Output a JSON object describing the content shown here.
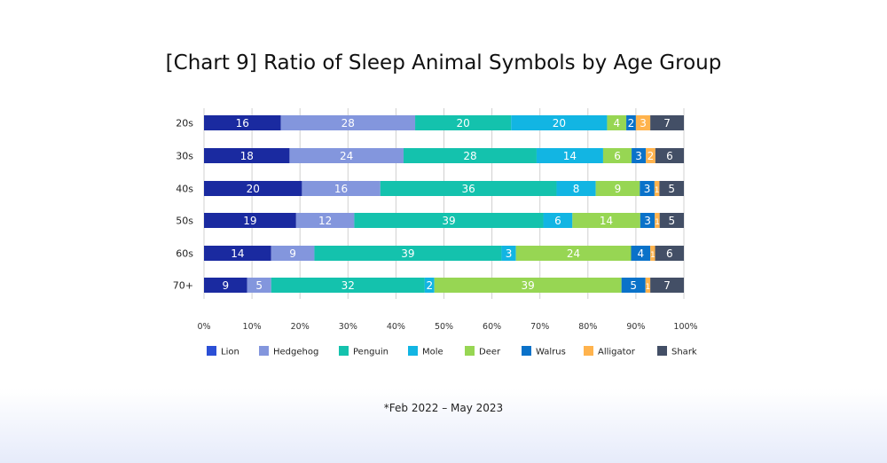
{
  "chart_data": {
    "type": "bar",
    "orientation": "horizontal",
    "stacked": true,
    "percent": true,
    "title": "[Chart 9] Ratio of Sleep Animal Symbols by Age Group",
    "categories": [
      "20s",
      "30s",
      "40s",
      "50s",
      "60s",
      "70+"
    ],
    "xlim": [
      0,
      100
    ],
    "xticks": [
      "0%",
      "10%",
      "20%",
      "30%",
      "40%",
      "50%",
      "60%",
      "70%",
      "80%",
      "90%",
      "100%"
    ],
    "grid": true,
    "legend_position": "bottom",
    "series": [
      {
        "name": "Lion",
        "color": "#1a2aa0",
        "legend_color": "#2b4fd6",
        "values": [
          16,
          18,
          20,
          19,
          14,
          9
        ]
      },
      {
        "name": "Hedgehog",
        "color": "#8396dd",
        "values": [
          28,
          24,
          16,
          12,
          9,
          5
        ]
      },
      {
        "name": "Penguin",
        "color": "#14c2ad",
        "values": [
          20,
          28,
          36,
          39,
          39,
          32
        ]
      },
      {
        "name": "Mole",
        "color": "#12b5e3",
        "values": [
          20,
          14,
          8,
          6,
          3,
          2
        ]
      },
      {
        "name": "Deer",
        "color": "#97d653",
        "values": [
          4,
          6,
          9,
          14,
          24,
          39
        ]
      },
      {
        "name": "Walrus",
        "color": "#0a72c9",
        "values": [
          2,
          3,
          3,
          3,
          4,
          5
        ]
      },
      {
        "name": "Alligator",
        "color": "#ffb34d",
        "values": [
          3,
          2,
          1,
          1,
          1,
          1
        ]
      },
      {
        "name": "Shark",
        "color": "#434f66",
        "values": [
          7,
          6,
          5,
          5,
          6,
          7
        ]
      }
    ]
  },
  "footnote": "*Feb 2022 – May 2023"
}
